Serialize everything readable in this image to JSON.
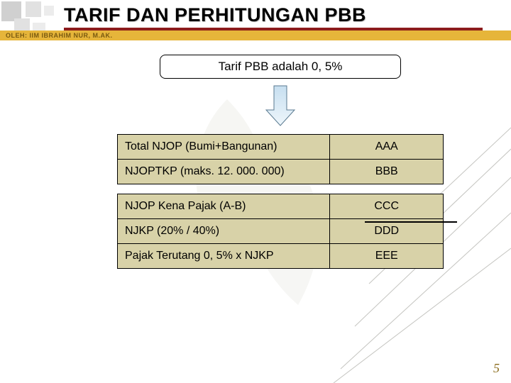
{
  "colors": {
    "title_text": "#000000",
    "rule": "#8c1c1c",
    "subtitle_bg": "#e6b53a",
    "subtitle_text": "#7a5a10",
    "row_bg": "#d8d2a8",
    "arrow_fill": "#c7dff0",
    "arrow_stroke": "#5a7a90",
    "brace": "#000000",
    "footer_text": "#8a6b1a",
    "bg_leaf": "#dcdcd2",
    "line_stroke": "#8a8a82"
  },
  "title": "TARIF DAN PERHITUNGAN PBB",
  "subtitle": "OLEH: IIM IBRAHIM NUR, M.AK.",
  "tarif_text": "Tarif PBB adalah 0, 5%",
  "table": {
    "group1": [
      {
        "label": "Total NJOP (Bumi+Bangunan)",
        "value": "AAA"
      },
      {
        "label": "NJOPTKP (maks. 12. 000. 000)",
        "value": "BBB"
      }
    ],
    "group2": [
      {
        "label": "NJOP Kena Pajak (A-B)",
        "value": "CCC"
      },
      {
        "label": "NJKP (20% / 40%)",
        "value": "DDD"
      },
      {
        "label": "Pajak Terutang 0, 5% x NJKP",
        "value": "EEE"
      }
    ]
  },
  "arrow": {
    "stem_w": 18,
    "stem_h": 34,
    "head_w": 40,
    "head_h": 22
  },
  "page_number": "5",
  "typography": {
    "title_fontsize": 27,
    "body_fontsize": 16,
    "tarif_fontsize": 17
  }
}
